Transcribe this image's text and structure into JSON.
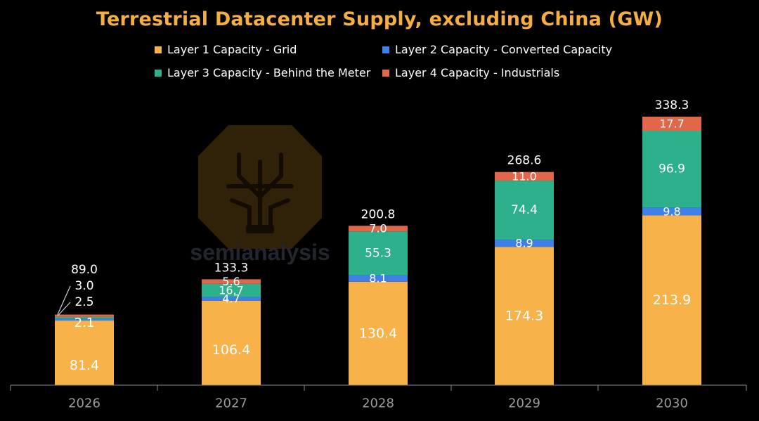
{
  "colors": {
    "background": "#000000",
    "title": "#f5ae3f",
    "grid": "#f7b24a",
    "converted": "#3f7fea",
    "behind_meter": "#2db08c",
    "industrials": "#e2664a",
    "axis": "#8a8a8a",
    "tick_label": "#9a9a9a"
  },
  "chart_data": {
    "type": "bar",
    "stacked": true,
    "title": "Terrestrial Datacenter Supply, excluding China (GW)",
    "categories": [
      "2026",
      "2027",
      "2028",
      "2029",
      "2030"
    ],
    "series": [
      {
        "name": "Layer 1 Capacity - Grid",
        "values": [
          81.4,
          106.4,
          130.4,
          174.3,
          213.9
        ]
      },
      {
        "name": "Layer 2 Capacity - Converted Capacity",
        "values": [
          2.1,
          4.7,
          8.1,
          8.9,
          9.8
        ]
      },
      {
        "name": "Layer 3 Capacity - Behind the Meter",
        "values": [
          2.5,
          16.7,
          55.3,
          74.4,
          96.9
        ]
      },
      {
        "name": "Layer 4 Capacity - Industrials",
        "values": [
          3.0,
          5.6,
          7.0,
          11.0,
          17.7
        ]
      }
    ],
    "totals": [
      89.0,
      133.3,
      200.8,
      268.6,
      338.3
    ],
    "value_labels": [
      [
        "81.4",
        "2.1",
        "2.5",
        "3.0"
      ],
      [
        "106.4",
        "4.7",
        "16.7",
        "5.6"
      ],
      [
        "130.4",
        "8.1",
        "55.3",
        "7.0"
      ],
      [
        "174.3",
        "8.9",
        "74.4",
        "11.0"
      ],
      [
        "213.9",
        "9.8",
        "96.9",
        "17.7"
      ]
    ],
    "total_labels": [
      "89.0",
      "133.3",
      "200.8",
      "268.6",
      "338.3"
    ],
    "xlabel": "",
    "ylabel": "",
    "ylim": [
      0,
      338.3
    ],
    "grid": false,
    "legend_position": "top"
  },
  "watermark": {
    "text": "semianalysis"
  }
}
